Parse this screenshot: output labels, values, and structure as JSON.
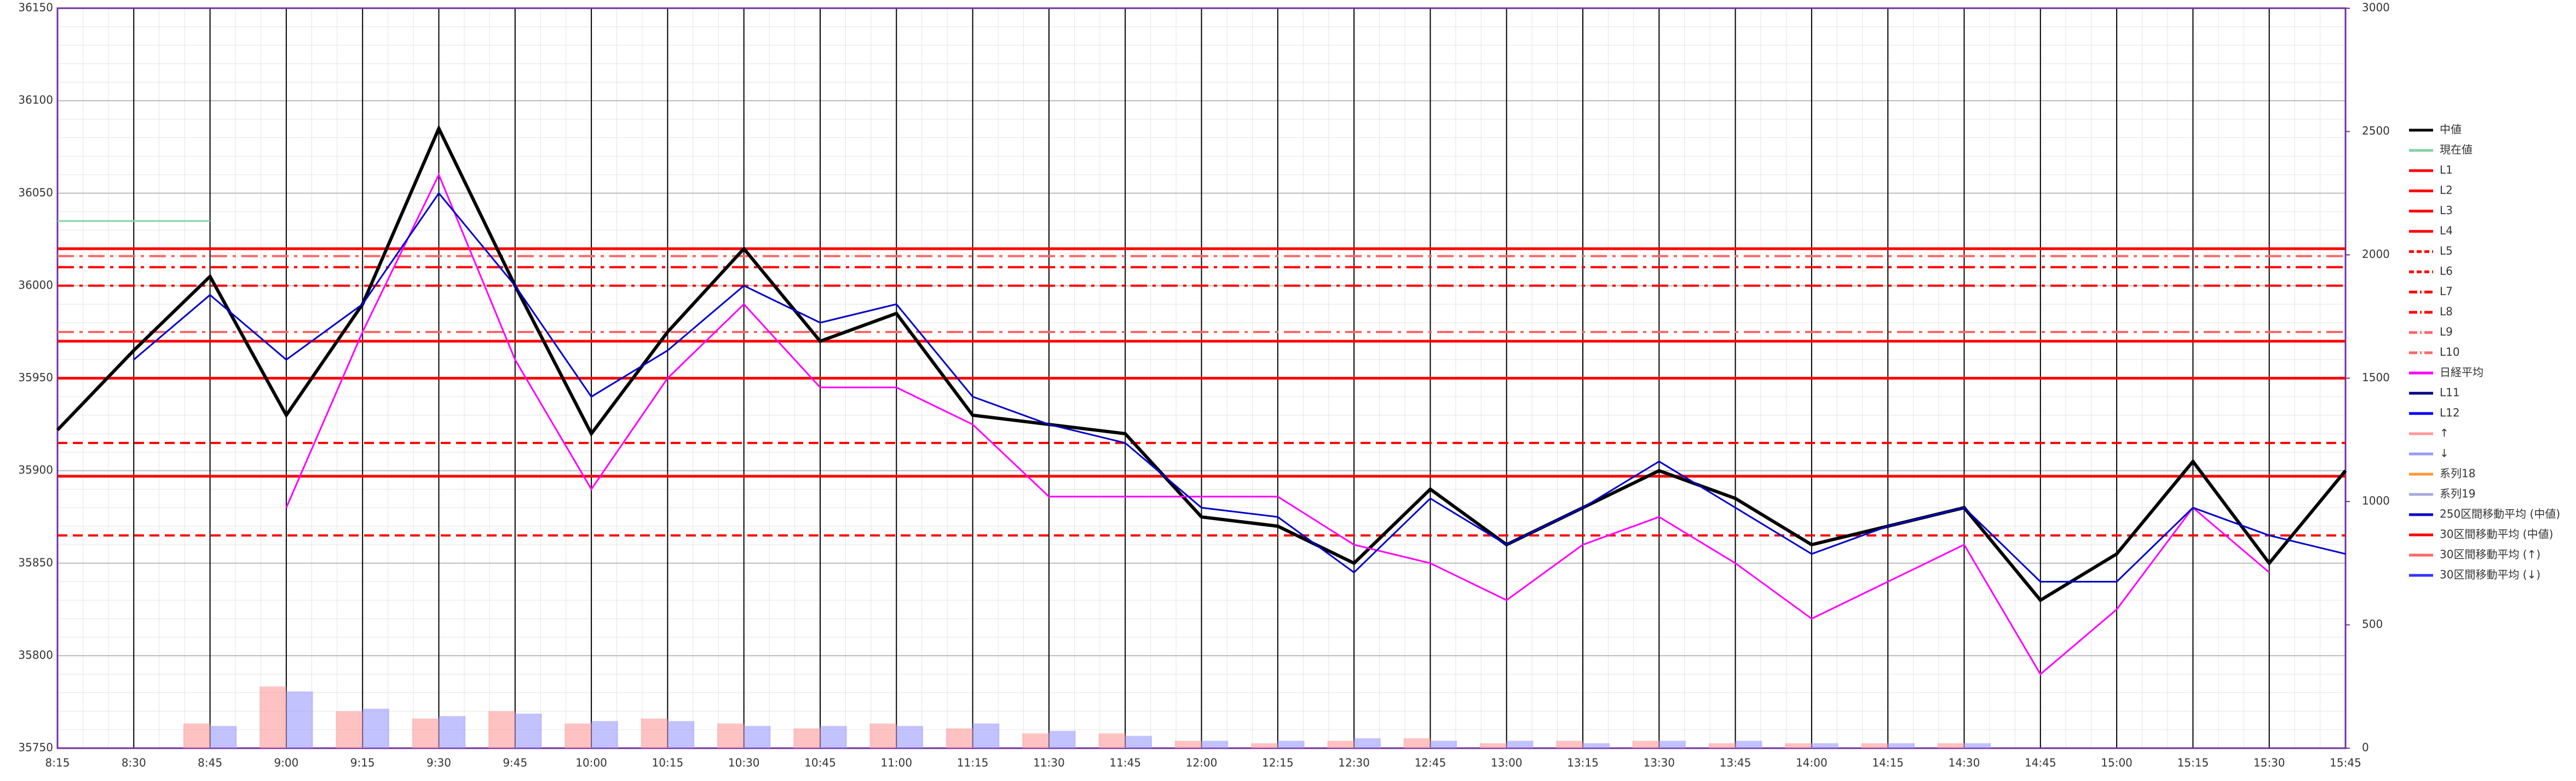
{
  "chart_data": {
    "type": "line",
    "categories": [
      "8:15",
      "8:30",
      "8:45",
      "9:00",
      "9:15",
      "9:30",
      "9:45",
      "10:00",
      "10:15",
      "10:30",
      "10:45",
      "11:00",
      "11:15",
      "11:30",
      "11:45",
      "12:00",
      "12:15",
      "12:30",
      "12:45",
      "13:00",
      "13:15",
      "13:30",
      "13:45",
      "14:00",
      "14:15",
      "14:30",
      "14:45",
      "15:00",
      "15:15",
      "15:30",
      "15:45"
    ],
    "ylim": [
      35750,
      36150
    ],
    "yticks": [
      35750,
      35800,
      35850,
      35900,
      35950,
      36000,
      36050,
      36100,
      36150
    ],
    "y2lim": [
      0,
      3000
    ],
    "y2ticks": [
      0,
      500,
      1000,
      1500,
      2000,
      2500,
      3000
    ],
    "series": [
      {
        "name": "中値",
        "color": "#000000",
        "values": [
          35922,
          35965,
          36005,
          35930,
          35990,
          36085,
          36000,
          35920,
          35975,
          36020,
          35970,
          35985,
          35930,
          35925,
          35920,
          35875,
          35870,
          35850,
          35890,
          35860,
          35880,
          35900,
          35885,
          35860,
          35870,
          35880,
          35830,
          35855,
          35905,
          35850,
          35900
        ]
      },
      {
        "name": "現在値",
        "color": "#7fd4a8",
        "values": [
          36035,
          36035,
          36035,
          null,
          null,
          null,
          null,
          null,
          null,
          null,
          null,
          null,
          null,
          null,
          null,
          null,
          null,
          null,
          null,
          null,
          null,
          null,
          null,
          null,
          null,
          null,
          null,
          null,
          null,
          null,
          null
        ]
      },
      {
        "name": "日経平均",
        "color": "#ff00ff",
        "values": [
          null,
          null,
          null,
          35880,
          35975,
          36060,
          35960,
          35890,
          35950,
          35990,
          35945,
          35945,
          35925,
          35886,
          35886,
          35886,
          35886,
          35860,
          35850,
          35830,
          35860,
          35875,
          35850,
          35820,
          35840,
          35860,
          35790,
          35825,
          35880,
          35845,
          null
        ]
      },
      {
        "name": "250区間移動平均 (中値)",
        "color": "#0000cc",
        "values": [
          null,
          35960,
          35995,
          35960,
          35990,
          36050,
          36000,
          35940,
          35965,
          36000,
          35980,
          35990,
          35940,
          35925,
          35915,
          35880,
          35875,
          35845,
          35885,
          35860,
          35880,
          35905,
          35880,
          35855,
          35870,
          35880,
          35840,
          35840,
          35880,
          35865,
          35855
        ]
      },
      {
        "name": "↑",
        "color": "#ff9999",
        "axis": "y2",
        "bar": true,
        "values": [
          0,
          0,
          100,
          250,
          150,
          120,
          150,
          100,
          120,
          100,
          80,
          100,
          80,
          60,
          60,
          30,
          20,
          30,
          40,
          20,
          30,
          30,
          20,
          20,
          20,
          20,
          0,
          0,
          0,
          0,
          0
        ]
      },
      {
        "name": "↓",
        "color": "#9999ff",
        "axis": "y2",
        "bar": true,
        "values": [
          0,
          0,
          90,
          230,
          160,
          130,
          140,
          110,
          110,
          90,
          90,
          90,
          100,
          70,
          50,
          30,
          30,
          40,
          30,
          30,
          20,
          30,
          30,
          20,
          20,
          20,
          0,
          0,
          0,
          0,
          0
        ]
      },
      {
        "name": "系列18",
        "color": "#ff9933"
      },
      {
        "name": "系列19",
        "color": "#aaaadd"
      },
      {
        "name": "30区間移動平均 (中値)",
        "color": "#ff0000"
      },
      {
        "name": "30区間移動平均 (↑)",
        "color": "#ff6666"
      },
      {
        "name": "30区間移動平均 (↓)",
        "color": "#3333ff"
      }
    ],
    "levels": [
      {
        "name": "L1",
        "color": "#ff0000",
        "dash": "solid",
        "value": 36020
      },
      {
        "name": "L2",
        "color": "#ff0000",
        "dash": "solid",
        "value": 35970
      },
      {
        "name": "L3",
        "color": "#ff0000",
        "dash": "solid",
        "value": 35950
      },
      {
        "name": "L4",
        "color": "#ff0000",
        "dash": "solid",
        "value": 35897
      },
      {
        "name": "L5",
        "color": "#ff0000",
        "dash": "dash",
        "value": 35915
      },
      {
        "name": "L6",
        "color": "#ff0000",
        "dash": "dash",
        "value": 35865
      },
      {
        "name": "L7",
        "color": "#ff0000",
        "dash": "dashdot",
        "value": 36010
      },
      {
        "name": "L8",
        "color": "#ff0000",
        "dash": "dashdot",
        "value": 36000
      },
      {
        "name": "L9",
        "color": "#ff6666",
        "dash": "dashdot",
        "value": 35975
      },
      {
        "name": "L10",
        "color": "#ff6666",
        "dash": "dashdot",
        "value": 36016
      },
      {
        "name": "L11",
        "color": "#000080",
        "dash": "solid",
        "value": null
      },
      {
        "name": "L12",
        "color": "#0000ff",
        "dash": "solid",
        "value": null
      }
    ],
    "legend": "right"
  }
}
